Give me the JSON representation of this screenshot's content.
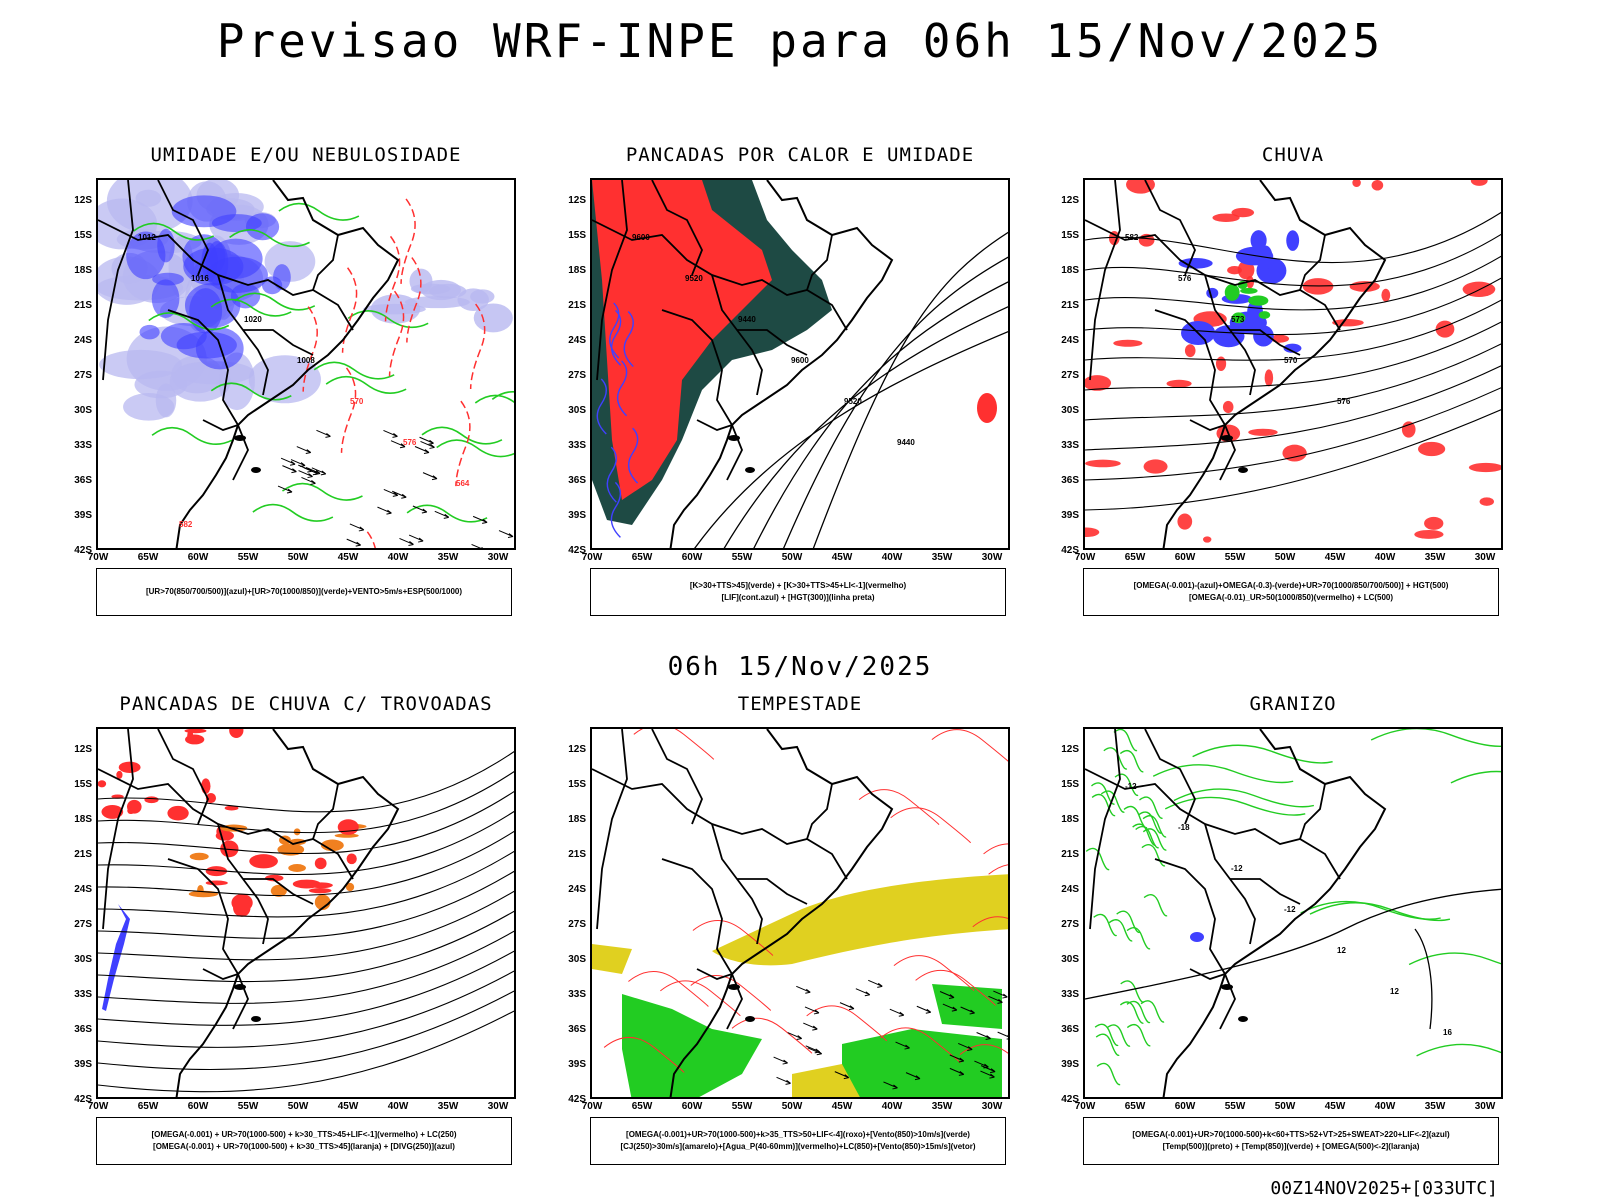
{
  "header": {
    "title": "Previsao WRF-INPE  para 06h 15/Nov/2025"
  },
  "mid_title": "06h 15/Nov/2025",
  "footer": "00Z14NOV2025+[033UTC]",
  "axes": {
    "lat_labels": [
      "12S",
      "15S",
      "18S",
      "21S",
      "24S",
      "27S",
      "30S",
      "33S",
      "36S",
      "39S",
      "42S"
    ],
    "lon_labels": [
      "70W",
      "65W",
      "60W",
      "55W",
      "50W",
      "45W",
      "40W",
      "35W",
      "30W"
    ]
  },
  "panels": [
    {
      "title": "UMIDADE E/OU NEBULOSIDADE",
      "legend": [
        "[UR>70(850/700/500)](azul)+[UR>70(1000/850)](verde)+VENTO>5m/s+ESP(500/1000)"
      ],
      "contour_labels": [
        "1012",
        "1016",
        "1020",
        "1008",
        "570",
        "576",
        "564",
        "582"
      ]
    },
    {
      "title": "PANCADAS POR CALOR E UMIDADE",
      "legend": [
        "[K>30+TTS>45](verde) + [K>30+TTS>45+LI<-1](vermelho)",
        "[LIF](cont.azul) + [HGT(300)](linha preta)"
      ],
      "contour_labels": [
        "9600",
        "9520",
        "9440",
        "9600",
        "9520",
        "9440"
      ]
    },
    {
      "title": "CHUVA",
      "legend": [
        "[OMEGA(-0.001)-(azul)+OMEGA(-0.3)-(verde)+UR>70(1000/850/700/500)] + HGT(500)",
        "[OMEGA(-0.01)_UR>50(1000/850)(vermelho) + LC(500)"
      ],
      "contour_labels": [
        "582",
        "576",
        "573",
        "570",
        "576"
      ]
    },
    {
      "title": "PANCADAS DE CHUVA C/ TROVOADAS",
      "legend": [
        "[OMEGA(-0.001) + UR>70(1000-500) + k>30_TTS>45+LIF<-1](vermelho) + LC(250)",
        "[OMEGA(-0.001) + UR>70(1000-500) + k>30_TTS>45](laranja) + [DIVG(250)](azul)"
      ],
      "contour_labels": []
    },
    {
      "title": "TEMPESTADE",
      "legend": [
        "[OMEGA(-0.001)+UR>70(1000-500)+k>35_TTS>50+LIF<-4](roxo)+[Vento(850)>10m/s](verde)",
        "[CJ(250)>30m/s](amarelo)+[Agua_P(40-60mm)](vermelho)+LC(850)+[Vento(850)>15m/s](vetor)"
      ],
      "contour_labels": []
    },
    {
      "title": "GRANIZO",
      "legend": [
        "[OMEGA(-0.001)+UR>70(1000-500)+k<60+TTS>52+VT>25+SWEAT>220+LIF<-2](azul)",
        "[Temp(500)](preto) + [Temp(850)](verde) + [OMEGA(500)<-2](laranja)"
      ],
      "contour_labels": [
        "-12",
        "-18",
        "-12",
        "-12",
        "12",
        "12",
        "16"
      ]
    }
  ],
  "colors": {
    "blue": "#4040ff",
    "lightblue": "#b8b8f0",
    "green": "#22cc22",
    "red": "#ff3030",
    "darkgreen": "#1e4a44",
    "orange": "#f08020",
    "yellow": "#e0d020"
  }
}
